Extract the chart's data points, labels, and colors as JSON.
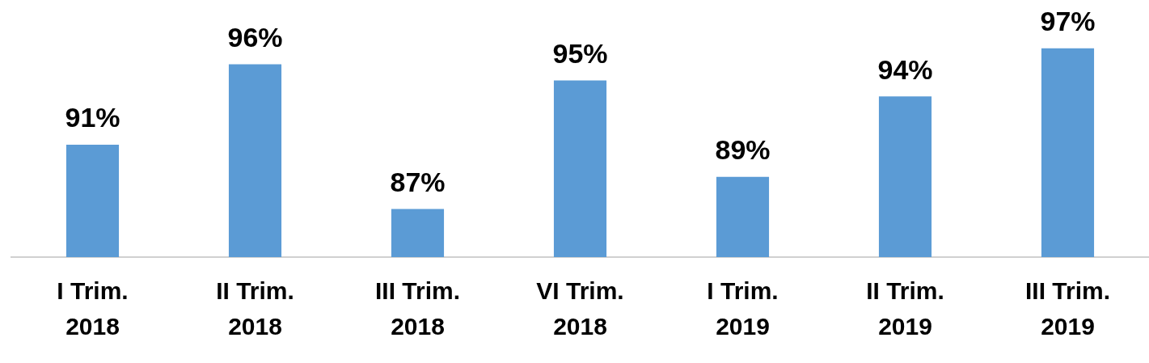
{
  "chart_data": {
    "type": "bar",
    "categories": [
      "I Trim.\n2018",
      "II Trim.\n2018",
      "III Trim.\n2018",
      "VI Trim.\n2018",
      "I Trim.\n2019",
      "II Trim.\n2019",
      "III Trim.\n2019"
    ],
    "values": [
      91,
      96,
      87,
      95,
      89,
      94,
      97
    ],
    "value_labels": [
      "91%",
      "96%",
      "87%",
      "95%",
      "89%",
      "94%",
      "97%"
    ],
    "color": "#5b9bd5",
    "tick_labels": "x",
    "grid": false,
    "legend": false
  }
}
